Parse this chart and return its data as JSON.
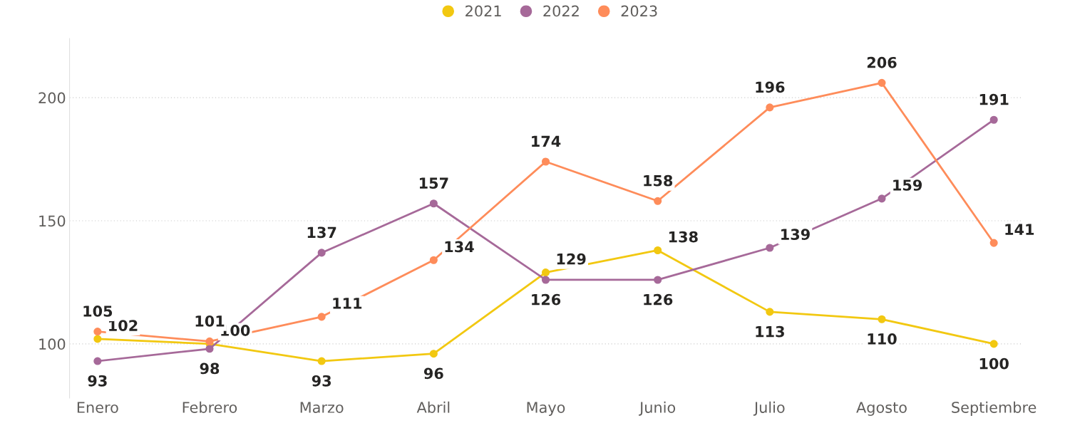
{
  "chart_data": {
    "type": "line",
    "categories": [
      "Enero",
      "Febrero",
      "Marzo",
      "Abril",
      "Mayo",
      "Junio",
      "Julio",
      "Agosto",
      "Septiembre"
    ],
    "series": [
      {
        "name": "2021",
        "color": "#f2c811",
        "values": [
          102,
          100,
          93,
          96,
          129,
          138,
          113,
          110,
          100
        ]
      },
      {
        "name": "2022",
        "color": "#a66999",
        "values": [
          93,
          98,
          137,
          157,
          126,
          126,
          139,
          159,
          191
        ]
      },
      {
        "name": "2023",
        "color": "#fe8c5a",
        "values": [
          105,
          101,
          111,
          134,
          174,
          158,
          196,
          206,
          141
        ]
      }
    ],
    "ylim": [
      78,
      224
    ],
    "yticks": [
      100,
      150,
      200
    ],
    "grid": "y",
    "legend": "top",
    "marker": "circle",
    "line_style": "solid",
    "data_labels": true
  }
}
